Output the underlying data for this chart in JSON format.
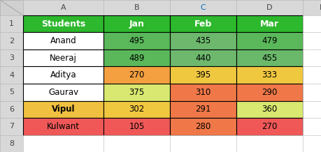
{
  "col_headers": [
    "Students",
    "Jan",
    "Feb",
    "Mar"
  ],
  "rows": [
    {
      "name": "Anand",
      "values": [
        495,
        435,
        479
      ],
      "name_bg": "#ffffff",
      "name_bold": false
    },
    {
      "name": "Neeraj",
      "values": [
        489,
        440,
        455
      ],
      "name_bg": "#ffffff",
      "name_bold": false
    },
    {
      "name": "Aditya",
      "values": [
        270,
        395,
        333
      ],
      "name_bg": "#ffffff",
      "name_bold": false
    },
    {
      "name": "Gaurav",
      "values": [
        375,
        310,
        290
      ],
      "name_bg": "#ffffff",
      "name_bold": false
    },
    {
      "name": "Vipul",
      "values": [
        302,
        291,
        360
      ],
      "name_bg": "#f0c040",
      "name_bold": true
    },
    {
      "name": "Kulwant",
      "values": [
        105,
        280,
        270
      ],
      "name_bg": "#f05858",
      "name_bold": false
    }
  ],
  "cell_colors": [
    [
      "#5ab85a",
      "#6db86d",
      "#5ab85a"
    ],
    [
      "#5ab85a",
      "#6db86d",
      "#6ab86a"
    ],
    [
      "#f4a040",
      "#f0c840",
      "#f0c840"
    ],
    [
      "#d8e870",
      "#f07848",
      "#f07848"
    ],
    [
      "#f0c840",
      "#f07848",
      "#d8e870"
    ],
    [
      "#f05858",
      "#f07848",
      "#f05858"
    ]
  ],
  "header_bg": "#2db82d",
  "header_text_color": "#ffffff",
  "text_color": "#000000",
  "outer_bg": "#d8d8d8",
  "excel_col_labels": [
    "A",
    "B",
    "C",
    "D",
    "E"
  ],
  "excel_row_labels": [
    "1",
    "2",
    "3",
    "4",
    "5",
    "6",
    "7",
    "8"
  ],
  "font_size": 8.5,
  "header_font_size": 9
}
